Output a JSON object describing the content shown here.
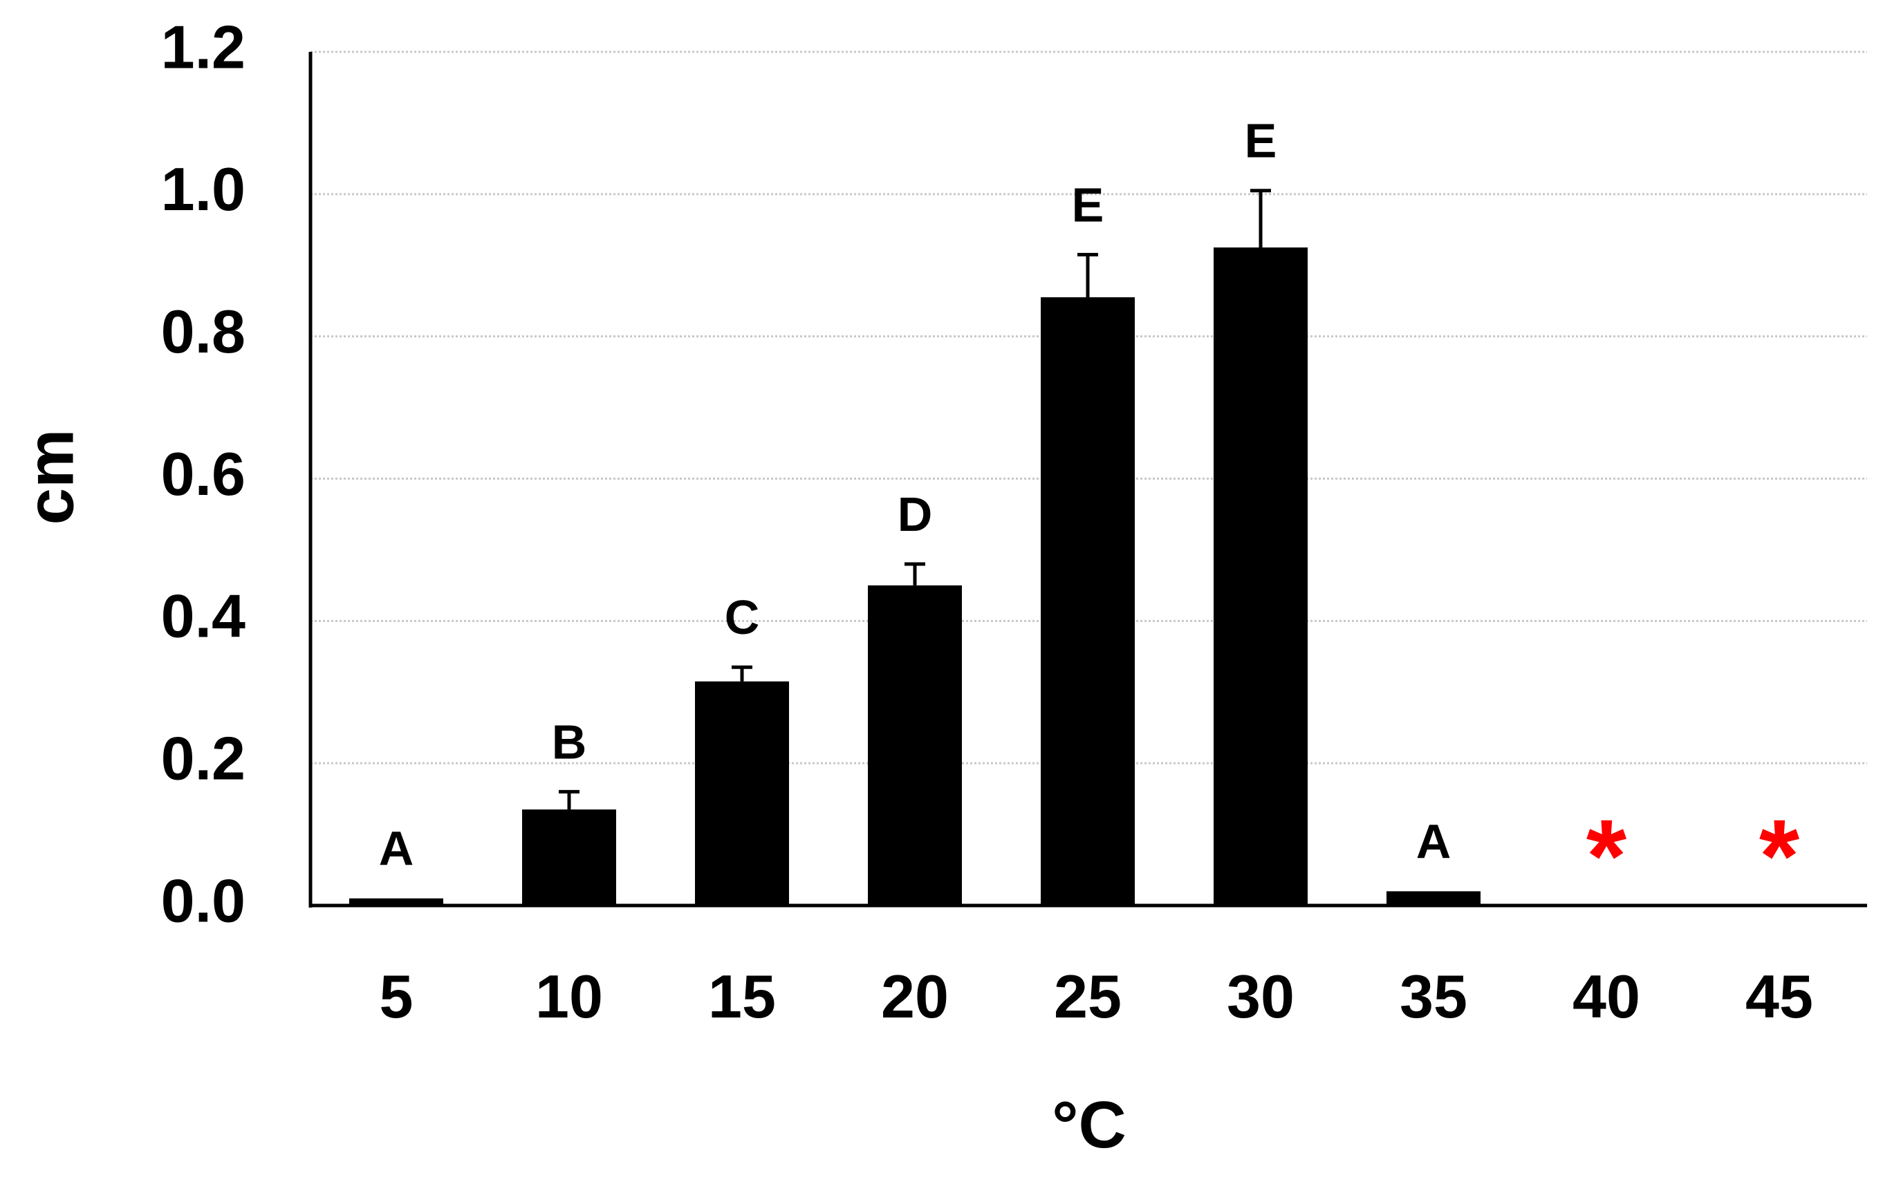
{
  "chart_data": {
    "type": "bar",
    "xlabel": "°C",
    "ylabel": "cm",
    "ylim": [
      0,
      1.2
    ],
    "yticks": [
      "0.0",
      "0.2",
      "0.4",
      "0.6",
      "0.8",
      "1.0",
      "1.2"
    ],
    "grid": true,
    "categories": [
      "5",
      "10",
      "15",
      "20",
      "25",
      "30",
      "35",
      "40",
      "45"
    ],
    "values": [
      0.01,
      0.135,
      0.315,
      0.45,
      0.855,
      0.925,
      0.02,
      null,
      null
    ],
    "errors": [
      0,
      0.025,
      0.02,
      0.03,
      0.06,
      0.08,
      0,
      null,
      null
    ],
    "significance_labels": [
      "A",
      "B",
      "C",
      "D",
      "E",
      "E",
      "A",
      "*",
      "*"
    ],
    "colors": {
      "bar": "#000000",
      "star": "#ff0000",
      "grid": "#c8c8c8"
    }
  }
}
